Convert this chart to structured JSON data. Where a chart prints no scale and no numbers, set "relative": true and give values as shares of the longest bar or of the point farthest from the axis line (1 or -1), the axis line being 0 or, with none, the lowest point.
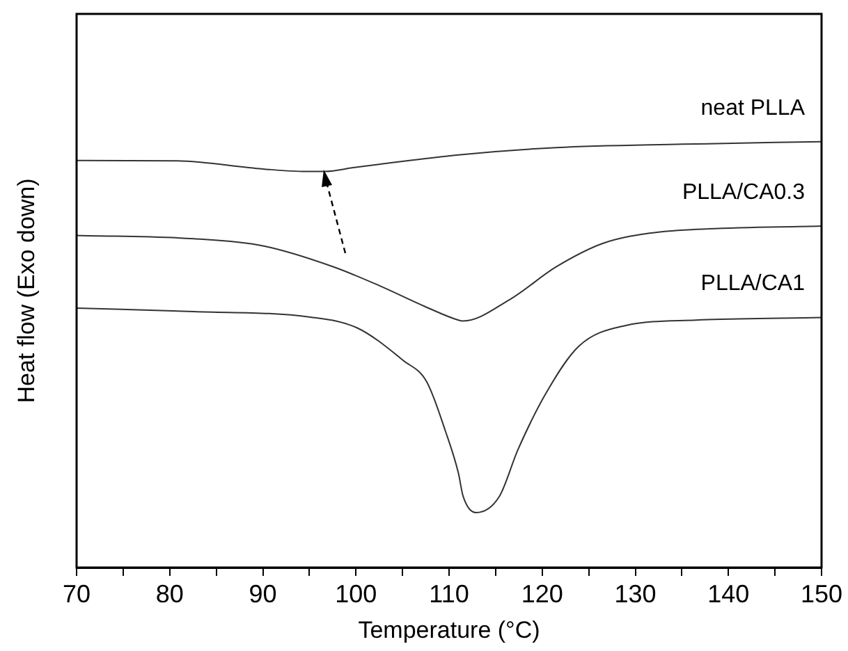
{
  "chart_data": {
    "type": "line",
    "xlabel": "Temperature (°C)",
    "ylabel": "Heat flow (Exo down)",
    "relative": true,
    "legend": false,
    "marker": "none",
    "grid": false,
    "xlim": [
      70,
      150
    ],
    "xticks": [
      70,
      {
        "value": 75,
        "label": null
      },
      80,
      {
        "value": 85,
        "label": null
      },
      90,
      {
        "value": 95,
        "label": null
      },
      100,
      {
        "value": 105,
        "label": null
      },
      110,
      {
        "value": 115,
        "label": null
      },
      120,
      {
        "value": 125,
        "label": null
      },
      130,
      {
        "value": 135,
        "label": null
      },
      140,
      {
        "value": 145,
        "label": null
      },
      150
    ],
    "series": [
      {
        "name": "neat PLLA",
        "color": "#333333",
        "x": [
          70,
          80.7,
          90,
          94.6,
          96.6,
          100,
          102.5,
          111,
          121.5,
          135,
          150
        ],
        "values": [
          0.956,
          0.955,
          0.936,
          0.93,
          0.93,
          0.94,
          0.947,
          0.969,
          0.986,
          0.994,
          1
        ]
      },
      {
        "name": "PLLA/CA0.3",
        "color": "#333333",
        "x": [
          70,
          82.6,
          90.1,
          97.6,
          102.5,
          107.5,
          111,
          111.5,
          116.5,
          121.5,
          126.5,
          131.5,
          136.5,
          150
        ],
        "values": [
          0.78,
          0.772,
          0.755,
          0.706,
          0.662,
          0.612,
          0.581,
          0.579,
          0.629,
          0.706,
          0.761,
          0.785,
          0.794,
          0.802
        ]
      },
      {
        "name": "PLLA/CA1",
        "color": "#333333",
        "x": [
          70,
          82.6,
          95.1,
          100.1,
          105.1,
          107.6,
          109.6,
          111,
          111.5,
          112.9,
          115.4,
          117.4,
          120.4,
          123.9,
          128.9,
          136.5,
          150
        ],
        "values": [
          0.609,
          0.601,
          0.588,
          0.563,
          0.486,
          0.436,
          0.321,
          0.222,
          0.168,
          0.129,
          0.167,
          0.277,
          0.409,
          0.519,
          0.568,
          0.581,
          0.587
        ]
      }
    ]
  }
}
